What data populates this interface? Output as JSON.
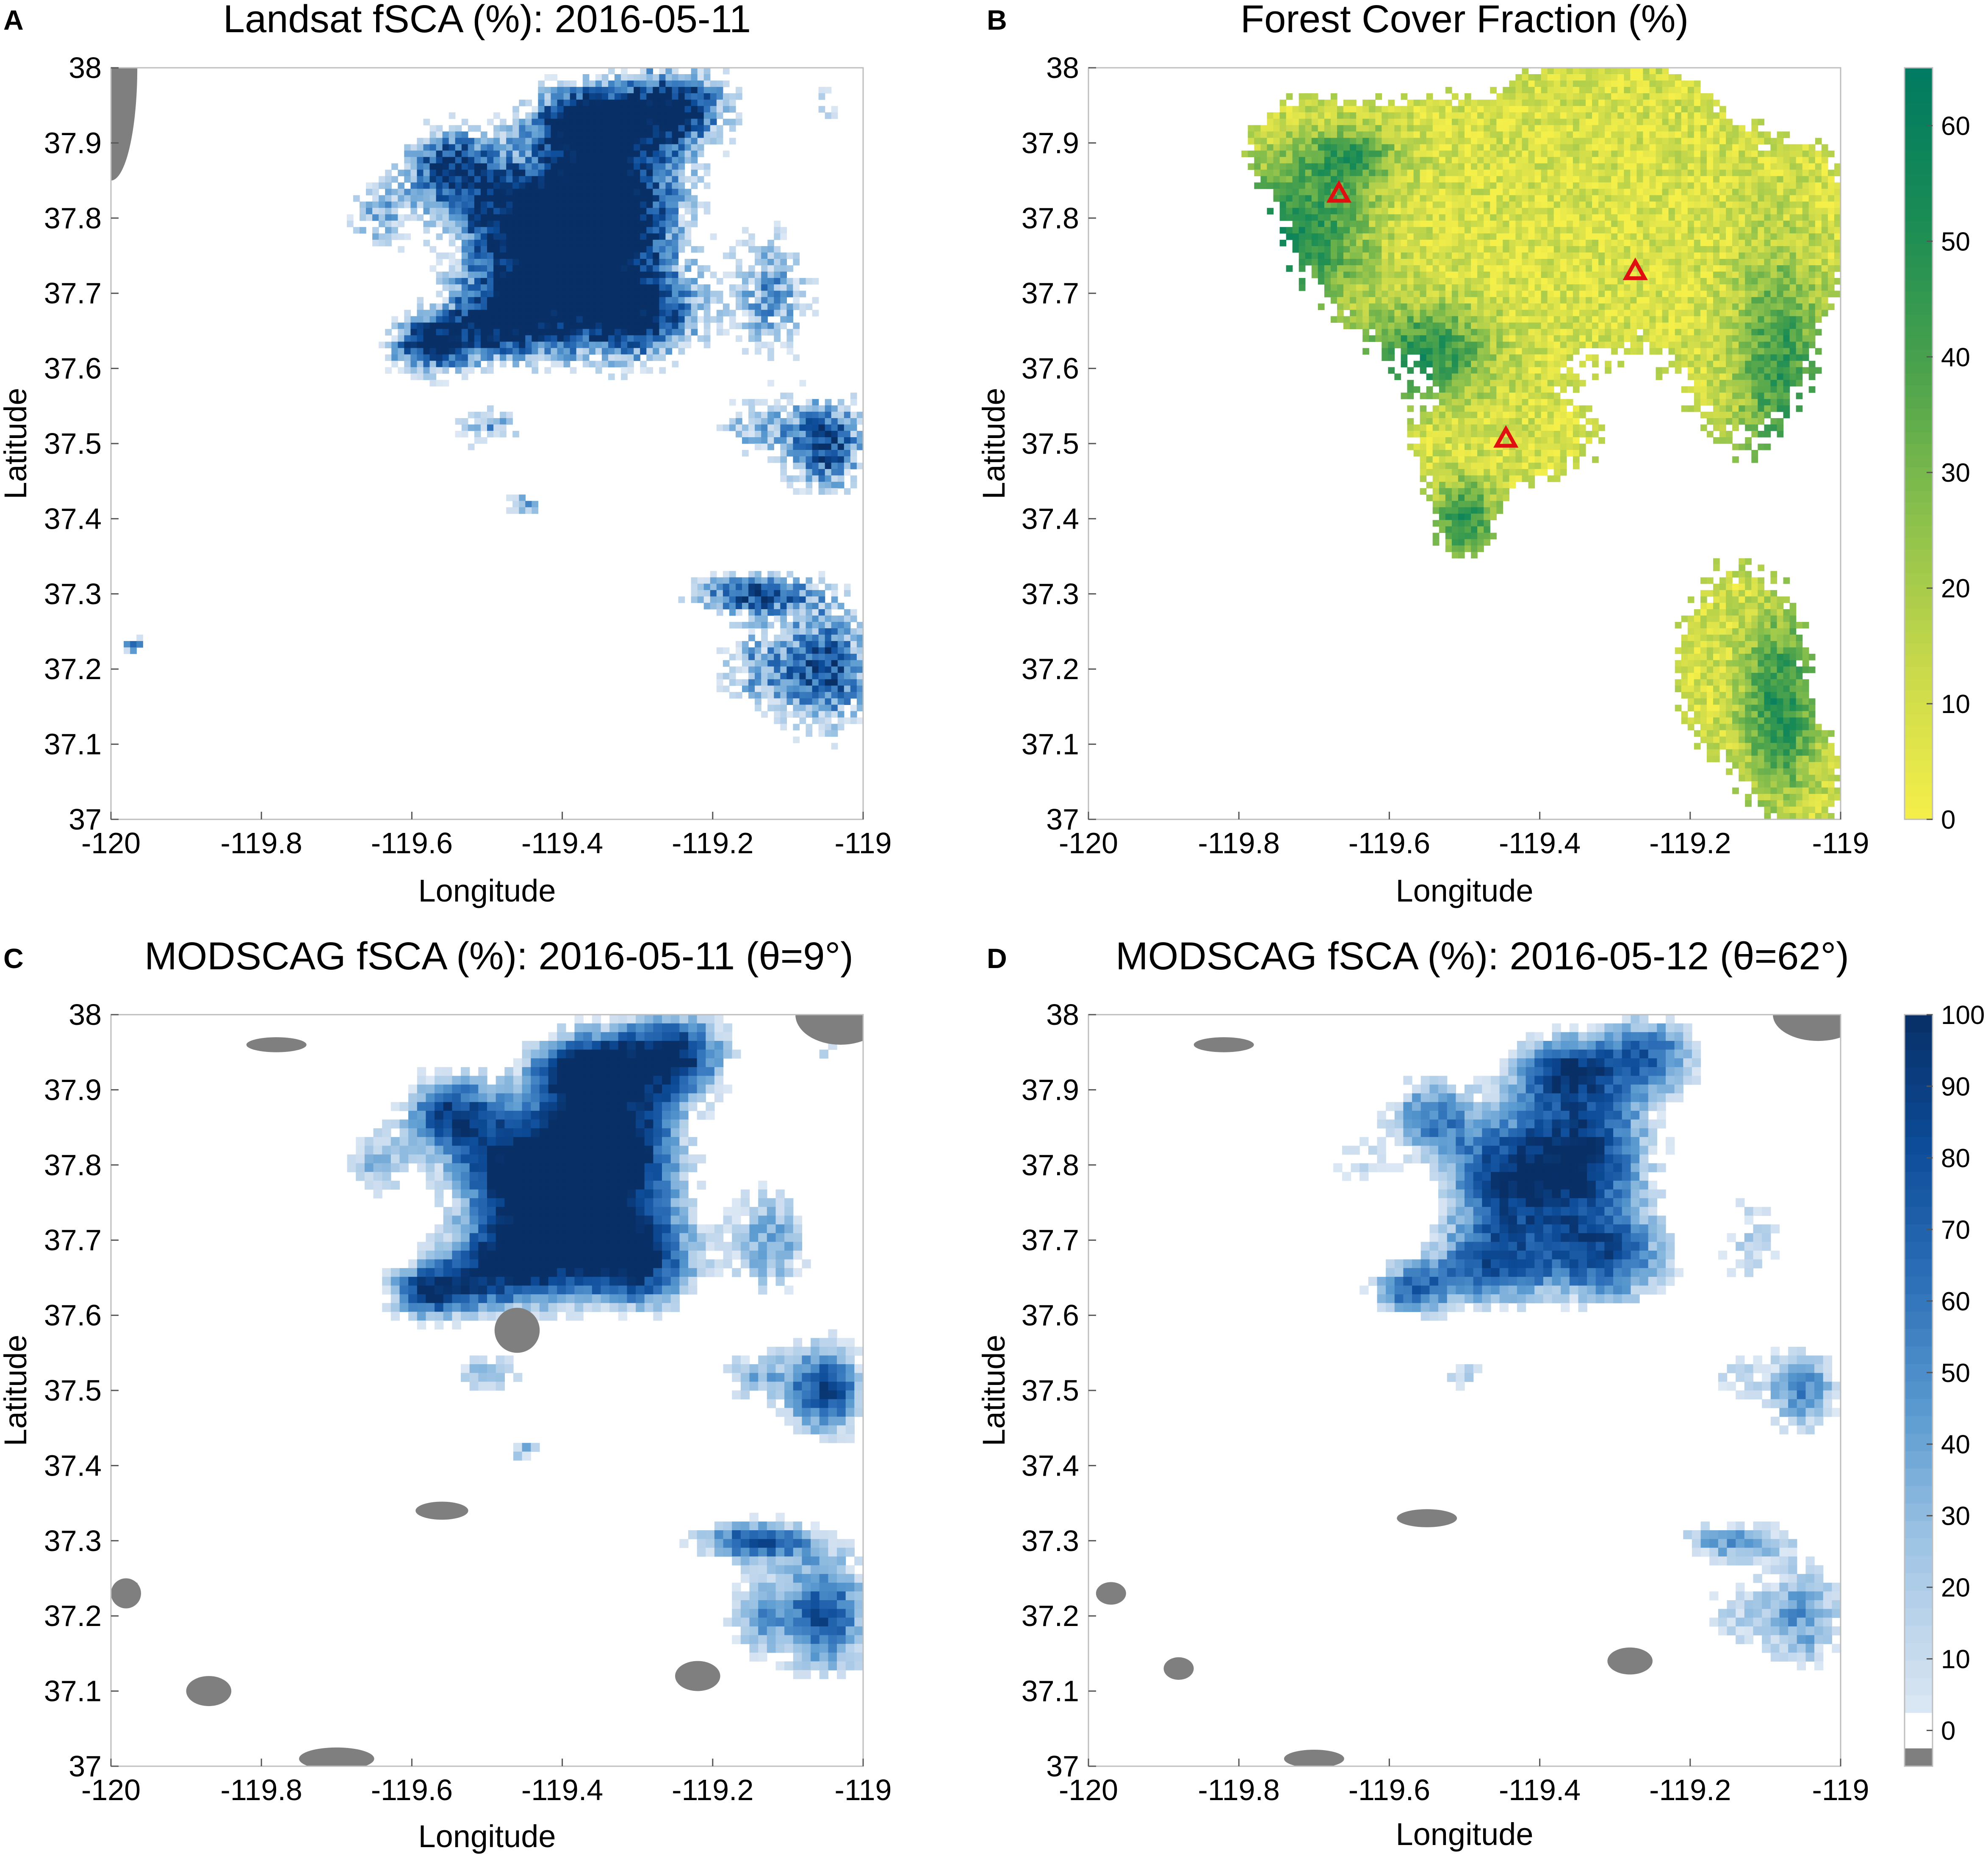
{
  "figure": {
    "nodata_color": "#7f7f7f",
    "snow_colors": [
      "#ffffff",
      "#cfdff0",
      "#9ec4e4",
      "#5a9ad0",
      "#2d6fb8",
      "#0d4c99",
      "#082f66"
    ],
    "forest_colors": [
      "#f5ef4a",
      "#c9d94a",
      "#8cc14c",
      "#4aa24c",
      "#1a8c55",
      "#007a62"
    ],
    "marker_color": "#e01010"
  },
  "chart_data": [
    {
      "id": "A",
      "type": "heatmap",
      "panel_label": "A",
      "title": "Landsat fSCA (%): 2016-05-11",
      "xlabel": "Longitude",
      "ylabel": "Latitude",
      "xlim": [
        -120,
        -119
      ],
      "ylim": [
        37,
        38
      ],
      "xticks": [
        -120,
        -119.8,
        -119.6,
        -119.4,
        -119.2,
        -119
      ],
      "xtick_labels": [
        "-120",
        "-119.8",
        "-119.6",
        "-119.4",
        "-119.2",
        "-119"
      ],
      "yticks": [
        37,
        37.1,
        37.2,
        37.3,
        37.4,
        37.5,
        37.6,
        37.7,
        37.8,
        37.9,
        38
      ],
      "ytick_labels": [
        "37",
        "37.1",
        "37.2",
        "37.3",
        "37.4",
        "37.5",
        "37.6",
        "37.7",
        "37.8",
        "37.9",
        "38"
      ],
      "colormap": "blues",
      "clim": [
        0,
        100
      ]
    },
    {
      "id": "B",
      "type": "heatmap",
      "panel_label": "B",
      "title": "Forest Cover Fraction (%)",
      "xlabel": "Longitude",
      "ylabel": "Latitude",
      "xlim": [
        -120,
        -119
      ],
      "ylim": [
        37,
        38
      ],
      "xticks": [
        -120,
        -119.8,
        -119.6,
        -119.4,
        -119.2,
        -119
      ],
      "xtick_labels": [
        "-120",
        "-119.8",
        "-119.6",
        "-119.4",
        "-119.2",
        "-119"
      ],
      "yticks": [
        37,
        37.1,
        37.2,
        37.3,
        37.4,
        37.5,
        37.6,
        37.7,
        37.8,
        37.9,
        38
      ],
      "ytick_labels": [
        "37",
        "37.1",
        "37.2",
        "37.3",
        "37.4",
        "37.5",
        "37.6",
        "37.7",
        "37.8",
        "37.9",
        "38"
      ],
      "colormap": "yellow-green",
      "clim": [
        0,
        65
      ],
      "colorbar": {
        "ticks": [
          0,
          10,
          20,
          30,
          40,
          50,
          60
        ],
        "tick_labels": [
          "0",
          "10",
          "20",
          "30",
          "40",
          "50",
          "60"
        ]
      },
      "markers": [
        {
          "shape": "triangle",
          "lon": -119.667,
          "lat": 37.833
        },
        {
          "shape": "triangle",
          "lon": -119.273,
          "lat": 37.73
        },
        {
          "shape": "triangle",
          "lon": -119.445,
          "lat": 37.507
        }
      ]
    },
    {
      "id": "C",
      "type": "heatmap",
      "panel_label": "C",
      "title": "MODSCAG fSCA (%): 2016-05-11 (θ=9°)",
      "xlabel": "Longitude",
      "ylabel": "Latitude",
      "xlim": [
        -120,
        -119
      ],
      "ylim": [
        37,
        38
      ],
      "xticks": [
        -120,
        -119.8,
        -119.6,
        -119.4,
        -119.2,
        -119
      ],
      "xtick_labels": [
        "-120",
        "-119.8",
        "-119.6",
        "-119.4",
        "-119.2",
        "-119"
      ],
      "yticks": [
        37,
        37.1,
        37.2,
        37.3,
        37.4,
        37.5,
        37.6,
        37.7,
        37.8,
        37.9,
        38
      ],
      "ytick_labels": [
        "37",
        "37.1",
        "37.2",
        "37.3",
        "37.4",
        "37.5",
        "37.6",
        "37.7",
        "37.8",
        "37.9",
        "38"
      ],
      "colormap": "blues",
      "clim": [
        0,
        100
      ]
    },
    {
      "id": "D",
      "type": "heatmap",
      "panel_label": "D",
      "title": "MODSCAG fSCA (%): 2016-05-12 (θ=62°)",
      "xlabel": "Longitude",
      "ylabel": "Latitude",
      "xlim": [
        -120,
        -119
      ],
      "ylim": [
        37,
        38
      ],
      "xticks": [
        -120,
        -119.8,
        -119.6,
        -119.4,
        -119.2,
        -119
      ],
      "xtick_labels": [
        "-120",
        "-119.8",
        "-119.6",
        "-119.4",
        "-119.2",
        "-119"
      ],
      "yticks": [
        37,
        37.1,
        37.2,
        37.3,
        37.4,
        37.5,
        37.6,
        37.7,
        37.8,
        37.9,
        38
      ],
      "ytick_labels": [
        "37",
        "37.1",
        "37.2",
        "37.3",
        "37.4",
        "37.5",
        "37.6",
        "37.7",
        "37.8",
        "37.9",
        "38"
      ],
      "colormap": "blues",
      "clim": [
        0,
        100
      ],
      "colorbar": {
        "ticks": [
          0,
          10,
          20,
          30,
          40,
          50,
          60,
          70,
          80,
          90,
          100
        ],
        "tick_labels": [
          "0",
          "10",
          "20",
          "30",
          "40",
          "50",
          "60",
          "70",
          "80",
          "90",
          "100"
        ]
      }
    }
  ]
}
